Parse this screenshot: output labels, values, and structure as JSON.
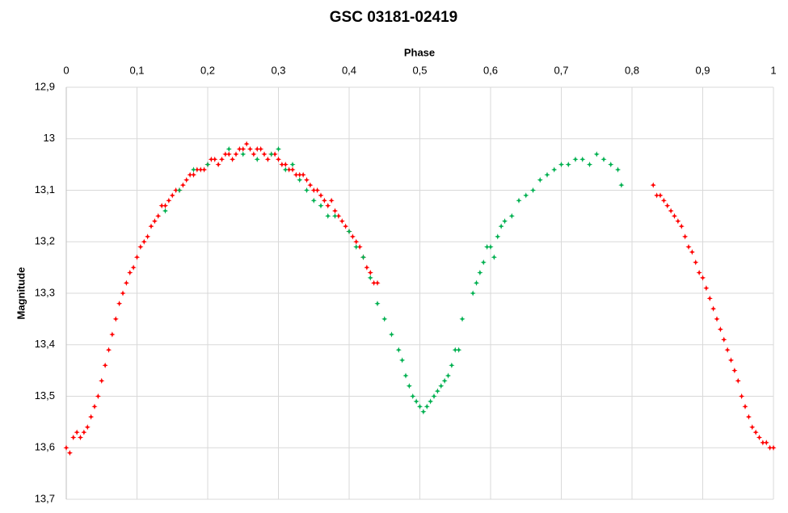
{
  "chart_data": {
    "type": "scatter",
    "title": "GSC 03181-02419",
    "x_label": "Phase",
    "y_label": "Magnitude",
    "x_axis_position": "top",
    "y_inverted": true,
    "grid": true,
    "xlim": [
      0,
      1
    ],
    "xticks": [
      0,
      {
        "value": 0.1,
        "label": "0,1"
      },
      {
        "value": 0.2,
        "label": "0,2"
      },
      {
        "value": 0.3,
        "label": "0,3"
      },
      {
        "value": 0.4,
        "label": "0,4"
      },
      {
        "value": 0.5,
        "label": "0,5"
      },
      {
        "value": 0.6,
        "label": "0,6"
      },
      {
        "value": 0.7,
        "label": "0,7"
      },
      {
        "value": 0.8,
        "label": "0,8"
      },
      {
        "value": 0.9,
        "label": "0,9"
      },
      1
    ],
    "ylim": [
      12.9,
      13.7
    ],
    "yticks": [
      {
        "value": 12.9,
        "label": "12,9"
      },
      13,
      {
        "value": 13.1,
        "label": "13,1"
      },
      {
        "value": 13.2,
        "label": "13,2"
      },
      {
        "value": 13.3,
        "label": "13,3"
      },
      {
        "value": 13.4,
        "label": "13,4"
      },
      {
        "value": 13.5,
        "label": "13,5"
      },
      {
        "value": 13.6,
        "label": "13,6"
      },
      {
        "value": 13.7,
        "label": "13,7"
      }
    ],
    "series": [
      {
        "color": "#ff0000",
        "x": [
          0,
          0.005,
          0.01,
          0.015,
          0.02,
          0.025,
          0.03,
          0.035,
          0.04,
          0.045,
          0.05,
          0.055,
          0.06,
          0.065,
          0.07,
          0.075,
          0.08,
          0.085,
          0.09,
          0.095,
          0.1,
          0.105,
          0.11,
          0.115,
          0.12,
          0.125,
          0.13,
          0.135,
          0.14,
          0.145,
          0.15,
          0.155,
          0.16,
          0.165,
          0.17,
          0.175,
          0.18,
          0.185,
          0.19,
          0.195,
          0.2,
          0.205,
          0.21,
          0.215,
          0.22,
          0.225,
          0.23,
          0.235,
          0.24,
          0.245,
          0.25,
          0.255,
          0.26,
          0.265,
          0.27,
          0.275,
          0.28,
          0.285,
          0.29,
          0.295,
          0.3,
          0.305,
          0.31,
          0.315,
          0.32,
          0.325,
          0.33,
          0.335,
          0.34,
          0.345,
          0.35,
          0.355,
          0.36,
          0.365,
          0.37,
          0.375,
          0.38,
          0.385,
          0.39,
          0.395,
          0.4,
          0.405,
          0.41,
          0.415,
          0.42,
          0.425,
          0.43,
          0.435,
          0.44,
          0.83,
          0.835,
          0.84,
          0.845,
          0.85,
          0.855,
          0.86,
          0.865,
          0.87,
          0.875,
          0.88,
          0.885,
          0.89,
          0.895,
          0.9,
          0.905,
          0.91,
          0.915,
          0.92,
          0.925,
          0.93,
          0.935,
          0.94,
          0.945,
          0.95,
          0.955,
          0.96,
          0.965,
          0.97,
          0.975,
          0.98,
          0.985,
          0.99,
          0.995,
          1
        ],
        "values": [
          13.6,
          13.61,
          13.58,
          13.57,
          13.58,
          13.57,
          13.56,
          13.54,
          13.52,
          13.5,
          13.47,
          13.44,
          13.41,
          13.38,
          13.35,
          13.32,
          13.3,
          13.28,
          13.26,
          13.25,
          13.23,
          13.21,
          13.2,
          13.19,
          13.17,
          13.16,
          13.15,
          13.13,
          13.13,
          13.12,
          13.11,
          13.1,
          13.1,
          13.09,
          13.08,
          13.07,
          13.07,
          13.06,
          13.06,
          13.06,
          13.05,
          13.04,
          13.04,
          13.05,
          13.04,
          13.03,
          13.03,
          13.04,
          13.03,
          13.02,
          13.02,
          13.01,
          13.02,
          13.03,
          13.02,
          13.02,
          13.03,
          13.04,
          13.03,
          13.03,
          13.04,
          13.05,
          13.05,
          13.06,
          13.06,
          13.07,
          13.07,
          13.07,
          13.08,
          13.09,
          13.1,
          13.1,
          13.11,
          13.12,
          13.13,
          13.12,
          13.14,
          13.15,
          13.16,
          13.17,
          13.18,
          13.19,
          13.2,
          13.21,
          13.23,
          13.25,
          13.26,
          13.28,
          13.28,
          13.09,
          13.11,
          13.11,
          13.12,
          13.13,
          13.14,
          13.15,
          13.16,
          13.17,
          13.19,
          13.21,
          13.22,
          13.24,
          13.26,
          13.27,
          13.29,
          13.31,
          13.33,
          13.35,
          13.37,
          13.39,
          13.41,
          13.43,
          13.45,
          13.47,
          13.5,
          13.52,
          13.54,
          13.56,
          13.57,
          13.58,
          13.59,
          13.59,
          13.6,
          13.6
        ]
      },
      {
        "color": "#00b050",
        "x": [
          0.14,
          0.16,
          0.18,
          0.2,
          0.23,
          0.25,
          0.27,
          0.29,
          0.3,
          0.31,
          0.32,
          0.33,
          0.34,
          0.35,
          0.36,
          0.37,
          0.38,
          0.4,
          0.41,
          0.42,
          0.43,
          0.44,
          0.45,
          0.46,
          0.47,
          0.475,
          0.48,
          0.485,
          0.49,
          0.495,
          0.5,
          0.505,
          0.51,
          0.515,
          0.52,
          0.525,
          0.53,
          0.535,
          0.54,
          0.545,
          0.55,
          0.555,
          0.56,
          0.575,
          0.58,
          0.585,
          0.59,
          0.595,
          0.6,
          0.605,
          0.61,
          0.615,
          0.62,
          0.63,
          0.64,
          0.65,
          0.66,
          0.67,
          0.68,
          0.69,
          0.7,
          0.71,
          0.72,
          0.73,
          0.74,
          0.75,
          0.76,
          0.77,
          0.78,
          0.785
        ],
        "values": [
          13.14,
          13.1,
          13.06,
          13.05,
          13.02,
          13.03,
          13.04,
          13.03,
          13.02,
          13.06,
          13.05,
          13.08,
          13.1,
          13.12,
          13.13,
          13.15,
          13.15,
          13.18,
          13.21,
          13.23,
          13.27,
          13.32,
          13.35,
          13.38,
          13.41,
          13.43,
          13.46,
          13.48,
          13.5,
          13.51,
          13.52,
          13.53,
          13.52,
          13.51,
          13.5,
          13.49,
          13.48,
          13.47,
          13.46,
          13.44,
          13.41,
          13.41,
          13.35,
          13.3,
          13.28,
          13.26,
          13.24,
          13.21,
          13.21,
          13.23,
          13.19,
          13.17,
          13.16,
          13.15,
          13.12,
          13.11,
          13.1,
          13.08,
          13.07,
          13.06,
          13.05,
          13.05,
          13.04,
          13.04,
          13.05,
          13.03,
          13.04,
          13.05,
          13.06,
          13.09
        ]
      }
    ]
  }
}
